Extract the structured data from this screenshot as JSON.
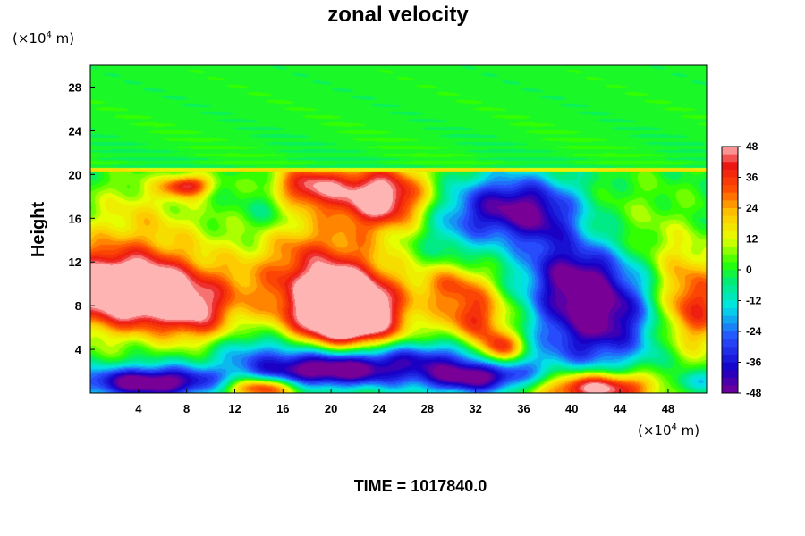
{
  "chart_data": {
    "type": "heatmap",
    "title": "zonal velocity",
    "ylabel": "Height",
    "x_unit": {
      "prefix": "(×10",
      "exp": "4",
      "suffix": " m)"
    },
    "y_unit": {
      "prefix": "(×10",
      "exp": "4",
      "suffix": " m)"
    },
    "xlim": [
      0,
      51.2
    ],
    "ylim": [
      0,
      30
    ],
    "x_ticks": [
      4,
      8,
      12,
      16,
      20,
      24,
      28,
      32,
      36,
      40,
      44,
      48
    ],
    "y_ticks": [
      4,
      8,
      12,
      16,
      20,
      24,
      28
    ],
    "colorbar": {
      "min": -48,
      "max": 48,
      "ticks": [
        48,
        36,
        24,
        12,
        0,
        -12,
        -24,
        -36,
        -48
      ],
      "placement": "right"
    },
    "features": [
      {
        "x": 1,
        "y": 10,
        "v": 50,
        "rx": 6,
        "ry": 4
      },
      {
        "x": 5,
        "y": 9,
        "v": 40,
        "rx": 4,
        "ry": 3
      },
      {
        "x": 9,
        "y": 7,
        "v": 30,
        "rx": 3,
        "ry": 3
      },
      {
        "x": 12,
        "y": 10,
        "v": 15,
        "rx": 4,
        "ry": 3
      },
      {
        "x": 8,
        "y": 14,
        "v": 8,
        "rx": 5,
        "ry": 3
      },
      {
        "x": 4,
        "y": 17,
        "v": 12,
        "rx": 4,
        "ry": 3
      },
      {
        "x": 8,
        "y": 19,
        "v": 40,
        "rx": 2,
        "ry": 1
      },
      {
        "x": 20,
        "y": 9,
        "v": 55,
        "rx": 5,
        "ry": 5
      },
      {
        "x": 22,
        "y": 7,
        "v": 45,
        "rx": 4,
        "ry": 3
      },
      {
        "x": 24,
        "y": 18,
        "v": 55,
        "rx": 4,
        "ry": 3
      },
      {
        "x": 18,
        "y": 19,
        "v": 40,
        "rx": 3,
        "ry": 2
      },
      {
        "x": 17,
        "y": 14,
        "v": 10,
        "rx": 3,
        "ry": 3
      },
      {
        "x": 15,
        "y": 17,
        "v": -10,
        "rx": 2,
        "ry": 2
      },
      {
        "x": 32,
        "y": 7,
        "v": 35,
        "rx": 3,
        "ry": 2.5
      },
      {
        "x": 34,
        "y": 4,
        "v": 45,
        "rx": 2,
        "ry": 1.5
      },
      {
        "x": 30,
        "y": 10,
        "v": 25,
        "rx": 3,
        "ry": 2
      },
      {
        "x": 35,
        "y": 17,
        "v": -45,
        "rx": 5,
        "ry": 3
      },
      {
        "x": 30,
        "y": 15,
        "v": -10,
        "rx": 3,
        "ry": 3
      },
      {
        "x": 42,
        "y": 7,
        "v": -50,
        "rx": 5,
        "ry": 4.5
      },
      {
        "x": 40,
        "y": 11,
        "v": -30,
        "rx": 4,
        "ry": 3
      },
      {
        "x": 38,
        "y": 15,
        "v": -15,
        "rx": 3,
        "ry": 3
      },
      {
        "x": 50,
        "y": 8,
        "v": 40,
        "rx": 3,
        "ry": 4
      },
      {
        "x": 48,
        "y": 13,
        "v": 10,
        "rx": 3,
        "ry": 3
      },
      {
        "x": 45,
        "y": 17,
        "v": 5,
        "rx": 4,
        "ry": 3
      },
      {
        "x": 5,
        "y": 1,
        "v": -55,
        "rx": 6,
        "ry": 1.5
      },
      {
        "x": 20,
        "y": 2,
        "v": -55,
        "rx": 6,
        "ry": 1.5
      },
      {
        "x": 32,
        "y": 1.5,
        "v": -50,
        "rx": 5,
        "ry": 1.5
      },
      {
        "x": 25,
        "y": 3.5,
        "v": -30,
        "rx": 10,
        "ry": 1.5
      },
      {
        "x": 14,
        "y": 0.5,
        "v": 45,
        "rx": 3,
        "ry": 1
      },
      {
        "x": 42,
        "y": 0.5,
        "v": 55,
        "rx": 5,
        "ry": 1.5
      },
      {
        "x": 50,
        "y": 1,
        "v": -20,
        "rx": 2,
        "ry": 1
      },
      {
        "x": 14,
        "y": 4,
        "v": -15,
        "rx": 5,
        "ry": 2
      }
    ],
    "upper_layer": {
      "from_height": 20.3,
      "value": 0
    }
  },
  "footer": {
    "time_label": "TIME = 1017840.0"
  }
}
